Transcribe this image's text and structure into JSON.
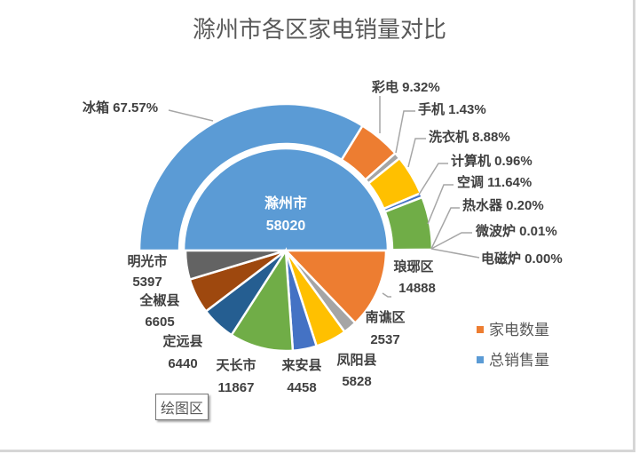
{
  "chart_data": {
    "type": "pie",
    "title": "滁州市各区家电销量对比",
    "legend": [
      "家电数量",
      "总销售量"
    ],
    "legend_position": "right",
    "inner_pie": {
      "total": {
        "label": "滁州市",
        "value": 58020,
        "color": "#5b9bd5"
      },
      "districts": [
        {
          "label": "琅琊区",
          "value": 14888,
          "color": "#ed7d31"
        },
        {
          "label": "南谯区",
          "value": 2537,
          "color": "#a5a5a5"
        },
        {
          "label": "凤阳县",
          "value": 5828,
          "color": "#ffc000"
        },
        {
          "label": "来安县",
          "value": 4458,
          "color": "#4472c4"
        },
        {
          "label": "天长市",
          "value": 11867,
          "color": "#70ad47"
        },
        {
          "label": "定远县",
          "value": 6440,
          "color": "#255e91"
        },
        {
          "label": "全椒县",
          "value": 6605,
          "color": "#9e480e"
        },
        {
          "label": "明光市",
          "value": 5397,
          "color": "#636363"
        }
      ]
    },
    "outer_ring": [
      {
        "label": "冰箱",
        "percent": "67.57%",
        "value": 67.57,
        "color": "#5b9bd5"
      },
      {
        "label": "彩电",
        "percent": "9.32%",
        "value": 9.32,
        "color": "#ed7d31"
      },
      {
        "label": "手机",
        "percent": "1.43%",
        "value": 1.43,
        "color": "#a5a5a5"
      },
      {
        "label": "洗衣机",
        "percent": "8.88%",
        "value": 8.88,
        "color": "#ffc000"
      },
      {
        "label": "计算机",
        "percent": "0.96%",
        "value": 0.96,
        "color": "#4472c4"
      },
      {
        "label": "空调",
        "percent": "11.64%",
        "value": 11.64,
        "color": "#70ad47"
      },
      {
        "label": "热水器",
        "percent": "0.20%",
        "value": 0.2,
        "color": "#255e91"
      },
      {
        "label": "微波炉",
        "percent": "0.01%",
        "value": 0.01,
        "color": "#9e480e"
      },
      {
        "label": "电磁炉",
        "percent": "0.00%",
        "value": 0.0,
        "color": "#636363"
      }
    ]
  },
  "legend_colors": {
    "家电数量": "#ed7d31",
    "总销售量": "#5b9bd5"
  },
  "tooltip": "绘图区"
}
